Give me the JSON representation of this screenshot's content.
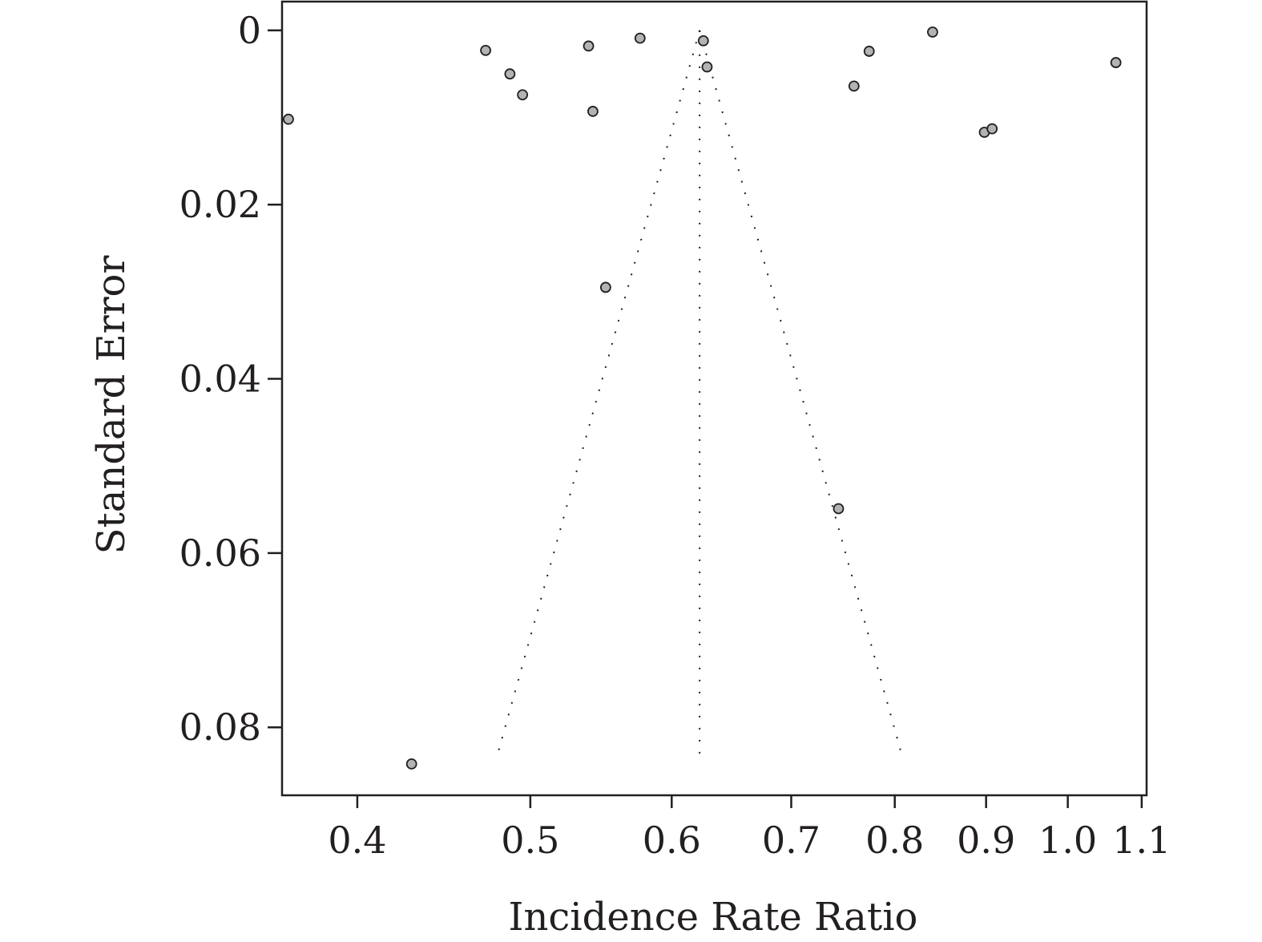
{
  "chart_data": {
    "type": "scatter",
    "title": "",
    "xlabel": "Incidence Rate Ratio",
    "ylabel": "Standard Error",
    "x_scale": "log",
    "x_ticks": [
      0.4,
      0.5,
      0.6,
      0.7,
      0.8,
      0.9,
      1.0,
      1.1
    ],
    "x_tick_labels": [
      "0.4",
      "0.5",
      "0.6",
      "0.7",
      "0.8",
      "0.9",
      "1.0",
      "1.1"
    ],
    "xlim": [
      0.363,
      1.107
    ],
    "y_ticks": [
      0,
      0.02,
      0.04,
      0.06,
      0.08
    ],
    "y_tick_labels": [
      "0",
      "0.02",
      "0.04",
      "0.06",
      "0.08"
    ],
    "ylim": [
      -0.0033,
      0.0878
    ],
    "y_reversed": true,
    "grid": false,
    "pooled_estimate": 0.622,
    "funnel_max_se": 0.0834,
    "series": [
      {
        "points": [
          {
            "x": 0.366,
            "y": 0.0102
          },
          {
            "x": 0.472,
            "y": 0.0023
          },
          {
            "x": 0.487,
            "y": 0.005
          },
          {
            "x": 0.495,
            "y": 0.0074
          },
          {
            "x": 0.539,
            "y": 0.0018
          },
          {
            "x": 0.542,
            "y": 0.0093
          },
          {
            "x": 0.551,
            "y": 0.0295
          },
          {
            "x": 0.576,
            "y": 0.0009
          },
          {
            "x": 0.625,
            "y": 0.0012
          },
          {
            "x": 0.628,
            "y": 0.0042
          },
          {
            "x": 0.744,
            "y": 0.0549
          },
          {
            "x": 0.759,
            "y": 0.0064
          },
          {
            "x": 0.774,
            "y": 0.0024
          },
          {
            "x": 0.84,
            "y": 0.0002
          },
          {
            "x": 0.898,
            "y": 0.0117
          },
          {
            "x": 0.907,
            "y": 0.0113
          },
          {
            "x": 1.064,
            "y": 0.0037
          },
          {
            "x": 0.429,
            "y": 0.0842
          }
        ]
      }
    ]
  }
}
